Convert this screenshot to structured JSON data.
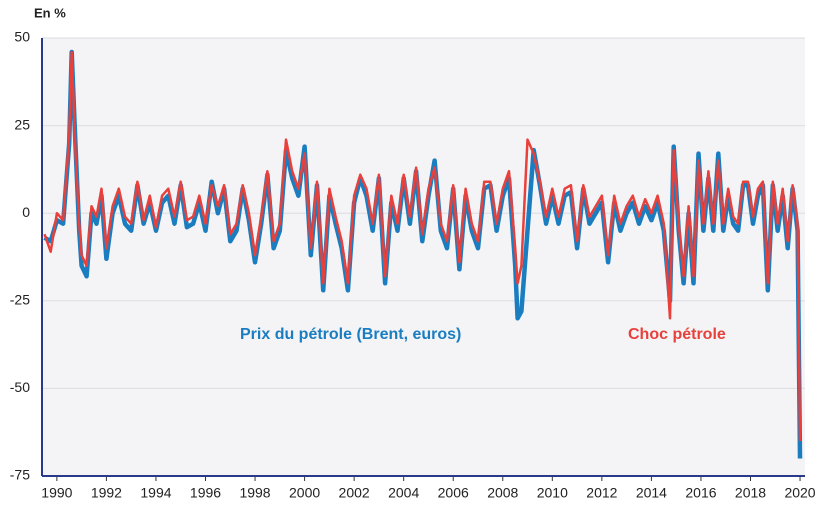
{
  "chart_data": {
    "type": "line",
    "y_axis_label": "En %",
    "x": [
      1989.5,
      1989.75,
      1990.0,
      1990.25,
      1990.5,
      1990.6,
      1990.75,
      1990.9,
      1991.0,
      1991.2,
      1991.4,
      1991.6,
      1991.8,
      1992.0,
      1992.25,
      1992.5,
      1992.75,
      1993.0,
      1993.25,
      1993.5,
      1993.75,
      1994.0,
      1994.25,
      1994.5,
      1994.75,
      1995.0,
      1995.25,
      1995.5,
      1995.75,
      1996.0,
      1996.25,
      1996.5,
      1996.75,
      1997.0,
      1997.25,
      1997.5,
      1997.75,
      1998.0,
      1998.25,
      1998.5,
      1998.75,
      1999.0,
      1999.25,
      1999.5,
      1999.75,
      2000.0,
      2000.25,
      2000.5,
      2000.75,
      2001.0,
      2001.25,
      2001.5,
      2001.75,
      2002.0,
      2002.25,
      2002.5,
      2002.75,
      2003.0,
      2003.25,
      2003.5,
      2003.75,
      2004.0,
      2004.25,
      2004.5,
      2004.75,
      2005.0,
      2005.25,
      2005.5,
      2005.75,
      2006.0,
      2006.25,
      2006.5,
      2006.75,
      2007.0,
      2007.25,
      2007.5,
      2007.75,
      2008.0,
      2008.25,
      2008.5,
      2008.6,
      2008.75,
      2009.0,
      2009.25,
      2009.5,
      2009.75,
      2010.0,
      2010.25,
      2010.5,
      2010.75,
      2011.0,
      2011.25,
      2011.5,
      2011.75,
      2012.0,
      2012.25,
      2012.5,
      2012.75,
      2013.0,
      2013.25,
      2013.5,
      2013.75,
      2014.0,
      2014.25,
      2014.5,
      2014.75,
      2014.9,
      2015.1,
      2015.3,
      2015.5,
      2015.7,
      2015.9,
      2016.1,
      2016.3,
      2016.5,
      2016.7,
      2016.9,
      2017.1,
      2017.3,
      2017.5,
      2017.7,
      2017.9,
      2018.1,
      2018.3,
      2018.5,
      2018.7,
      2018.9,
      2019.1,
      2019.3,
      2019.5,
      2019.7,
      2019.9,
      2020.0
    ],
    "series": [
      {
        "name": "Prix du pétrole (Brent, euros)",
        "color": "#1a7dc0",
        "values": [
          -7,
          -8,
          -2,
          -3,
          20,
          46,
          20,
          -5,
          -15,
          -18,
          0,
          -3,
          5,
          -13,
          0,
          5,
          -3,
          -5,
          8,
          -3,
          3,
          -5,
          3,
          5,
          -3,
          8,
          -4,
          -3,
          3,
          -5,
          9,
          0,
          7,
          -8,
          -5,
          7,
          -2,
          -14,
          -3,
          11,
          -10,
          -5,
          18,
          10,
          5,
          19,
          -12,
          8,
          -22,
          5,
          -3,
          -10,
          -22,
          3,
          10,
          5,
          -5,
          10,
          -20,
          3,
          -5,
          10,
          -3,
          12,
          -8,
          5,
          15,
          -5,
          -10,
          7,
          -16,
          5,
          -5,
          -10,
          7,
          8,
          -5,
          5,
          10,
          -15,
          -30,
          -28,
          -5,
          18,
          8,
          -3,
          5,
          -3,
          5,
          6,
          -10,
          7,
          -3,
          0,
          3,
          -14,
          3,
          -5,
          0,
          3,
          -3,
          2,
          -2,
          3,
          -5,
          -25,
          19,
          -5,
          -20,
          0,
          -20,
          17,
          -5,
          10,
          -5,
          17,
          -5,
          5,
          -3,
          -5,
          8,
          8,
          -3,
          5,
          8,
          -22,
          8,
          -5,
          5,
          -10,
          7,
          -5,
          -70
        ]
      },
      {
        "name": "Choc pétrole",
        "color": "#e8413c",
        "values": [
          -6,
          -11,
          0,
          -2,
          22,
          46,
          18,
          -3,
          -12,
          -15,
          2,
          -1,
          7,
          -10,
          2,
          7,
          -1,
          -3,
          9,
          -2,
          5,
          -4,
          5,
          7,
          -1,
          9,
          -2,
          -1,
          5,
          -3,
          8,
          2,
          8,
          -6,
          -3,
          8,
          0,
          -12,
          -1,
          12,
          -8,
          -3,
          21,
          12,
          7,
          17,
          -10,
          9,
          -20,
          7,
          -1,
          -8,
          -20,
          5,
          11,
          7,
          -3,
          11,
          -18,
          5,
          -3,
          11,
          -1,
          13,
          -6,
          7,
          13,
          -3,
          -8,
          8,
          -14,
          7,
          -3,
          -8,
          9,
          9,
          -3,
          7,
          12,
          -10,
          -20,
          -15,
          21,
          17,
          9,
          -1,
          7,
          -1,
          7,
          8,
          -8,
          8,
          -1,
          2,
          5,
          -12,
          5,
          -3,
          2,
          5,
          -1,
          4,
          0,
          5,
          -3,
          -30,
          18,
          -3,
          -18,
          2,
          -18,
          15,
          -3,
          12,
          -3,
          15,
          -3,
          7,
          -1,
          -3,
          9,
          9,
          -1,
          7,
          9,
          -20,
          9,
          -3,
          7,
          -8,
          8,
          -3,
          -65
        ]
      }
    ],
    "xlim": [
      1989.4,
      2020.2
    ],
    "xticks": [
      1990,
      1992,
      1994,
      1996,
      1998,
      2000,
      2002,
      2004,
      2006,
      2008,
      2010,
      2012,
      2014,
      2016,
      2018,
      2020
    ],
    "ylim": [
      -75,
      50
    ],
    "yticks": [
      50,
      25,
      0,
      -25,
      -50,
      -75
    ],
    "grid": true
  }
}
